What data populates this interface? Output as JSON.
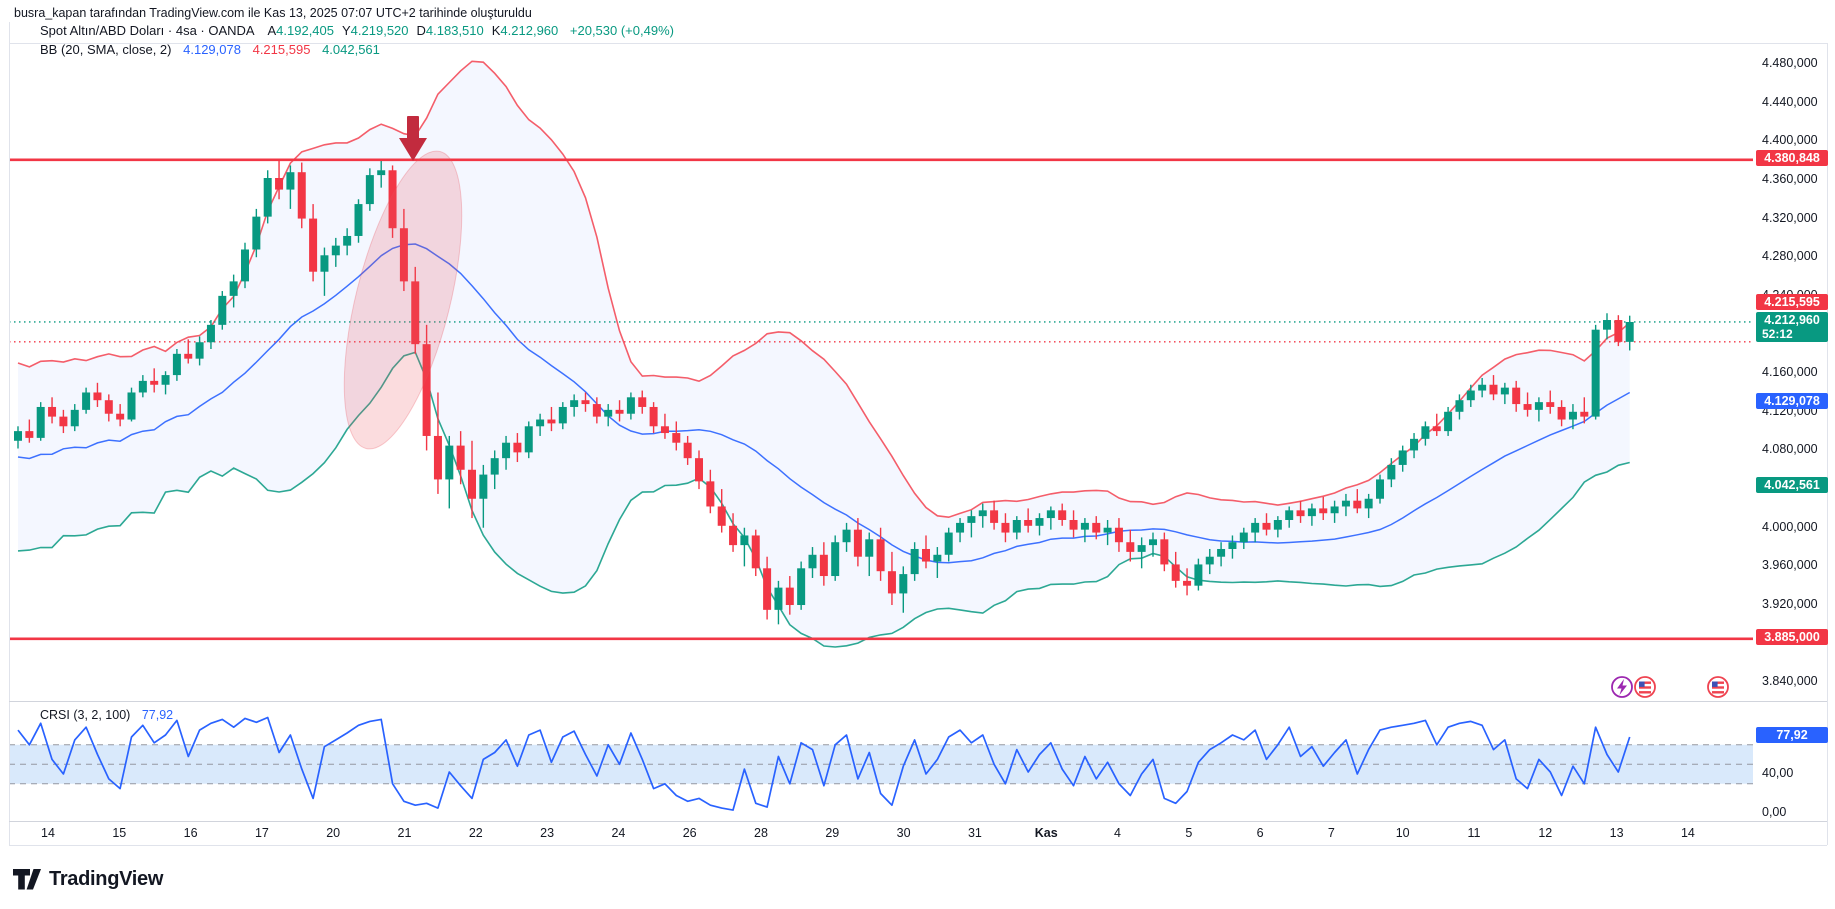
{
  "header": {
    "attribution": "busra_kapan tarafından TradingView.com ile Kas 13, 2025 07:07 UTC+2 tarihinde oluşturuldu"
  },
  "legend": {
    "symbol": "Spot Altın/ABD Doları · 4sa · OANDA",
    "ohlc": [
      {
        "label": "A",
        "value": "4.192,405"
      },
      {
        "label": "Y",
        "value": "4.219,520"
      },
      {
        "label": "D",
        "value": "4.183,510"
      },
      {
        "label": "K",
        "value": "4.212,960"
      }
    ],
    "change": "+20,530 (+0,49%)",
    "bb": {
      "name": "BB (20, SMA, close, 2)",
      "basis": "4.129,078",
      "upper": "4.215,595",
      "lower": "4.042,561"
    }
  },
  "crsi_legend": {
    "name": "CRSI (3, 2, 100)",
    "value": "77,92"
  },
  "footer": {
    "brand": "TradingView"
  },
  "colors": {
    "green": "#089981",
    "red": "#F23645",
    "blue": "#2962FF",
    "dark": "#131722",
    "border": "#E0E3EB",
    "separator": "#D1D4DC",
    "dashed": "#9598A1",
    "bb_fill": "rgba(41,98,255,0.05)",
    "crsi_band": "#D9E9FB",
    "annotation_red": "#C22B3E",
    "ellipse_fill": "rgba(234,78,90,0.22)"
  },
  "price_axis": {
    "ticks": [
      {
        "label": "4.480,000",
        "price": 4480
      },
      {
        "label": "4.440,000",
        "price": 4440
      },
      {
        "label": "4.400,000",
        "price": 4400
      },
      {
        "label": "4.360,000",
        "price": 4360
      },
      {
        "label": "4.320,000",
        "price": 4320
      },
      {
        "label": "4.280,000",
        "price": 4280
      },
      {
        "label": "4.240,000",
        "price": 4240
      },
      {
        "label": "4.160,000",
        "price": 4160
      },
      {
        "label": "4.120,000",
        "price": 4120
      },
      {
        "label": "4.080,000",
        "price": 4080
      },
      {
        "label": "4.000,000",
        "price": 4000
      },
      {
        "label": "3.960,000",
        "price": 3960
      },
      {
        "label": "3.920,000",
        "price": 3920
      },
      {
        "label": "3.840,000",
        "price": 3840
      }
    ],
    "badges": [
      {
        "label": "4.380,848",
        "price": 4380.848,
        "color": "red",
        "nudge": 0
      },
      {
        "label": "4.215,595",
        "price": 4215.595,
        "color": "red",
        "nudge": -15
      },
      {
        "label": "4.212,960",
        "price": 4212.96,
        "color": "green",
        "sub": "52:12",
        "nudge": 0
      },
      {
        "label": "4.129,078",
        "price": 4129.078,
        "color": "blue",
        "nudge": 0
      },
      {
        "label": "4.042,561",
        "price": 4042.561,
        "color": "green",
        "nudge": 0
      },
      {
        "label": "3.885,000",
        "price": 3885,
        "color": "red",
        "nudge": 0
      }
    ]
  },
  "crsi_axis": {
    "badge": {
      "label": "77,92",
      "value": 77.92,
      "color": "blue"
    },
    "ticks": [
      {
        "label": "40,00",
        "value": 40
      },
      {
        "label": "0,00",
        "value": 0
      }
    ]
  },
  "time_axis": {
    "labels": [
      "14",
      "15",
      "16",
      "17",
      "20",
      "21",
      "22",
      "23",
      "24",
      "26",
      "28",
      "29",
      "30",
      "31",
      "Kas",
      "4",
      "5",
      "6",
      "7",
      "10",
      "11",
      "12",
      "13",
      "14"
    ],
    "bold_index": 14
  },
  "chart_data": {
    "type": "candlestick",
    "symbol": "Spot Altın/ABD Doları",
    "timeframe": "4sa",
    "exchange": "OANDA",
    "last": {
      "open": 4192.405,
      "high": 4219.52,
      "low": 4183.51,
      "close": 4212.96,
      "change": "+20,530 (+0,49%)"
    },
    "levels": [
      {
        "price": 4380.848,
        "style": "solid",
        "color": "#F23645"
      },
      {
        "price": 3885.0,
        "style": "solid",
        "color": "#F23645"
      },
      {
        "price": 4212.96,
        "style": "dotted",
        "color": "#089981"
      },
      {
        "price": 4192.405,
        "style": "dotted",
        "color": "#F23645"
      }
    ],
    "bollinger": {
      "period": 20,
      "mult": 2,
      "basis": 4129.078,
      "upper": 4215.595,
      "lower": 4042.561,
      "seed": [
        4010,
        4125,
        4040,
        4110,
        3995,
        4090,
        4150,
        4030,
        4060,
        4135,
        4005,
        4080,
        4120,
        3990,
        4070,
        4140,
        4020,
        4055,
        4105,
        4045
      ]
    },
    "candles": [
      [
        4090,
        4105,
        4082,
        4100
      ],
      [
        4100,
        4112,
        4088,
        4093
      ],
      [
        4093,
        4130,
        4090,
        4125
      ],
      [
        4125,
        4135,
        4108,
        4115
      ],
      [
        4115,
        4122,
        4098,
        4105
      ],
      [
        4105,
        4128,
        4100,
        4122
      ],
      [
        4122,
        4145,
        4118,
        4140
      ],
      [
        4140,
        4150,
        4125,
        4132
      ],
      [
        4132,
        4138,
        4110,
        4118
      ],
      [
        4118,
        4128,
        4105,
        4112
      ],
      [
        4112,
        4145,
        4110,
        4140
      ],
      [
        4140,
        4158,
        4135,
        4152
      ],
      [
        4152,
        4165,
        4140,
        4148
      ],
      [
        4148,
        4162,
        4138,
        4158
      ],
      [
        4158,
        4185,
        4152,
        4180
      ],
      [
        4180,
        4195,
        4170,
        4175
      ],
      [
        4175,
        4198,
        4168,
        4192
      ],
      [
        4192,
        4215,
        4185,
        4210
      ],
      [
        4210,
        4245,
        4205,
        4240
      ],
      [
        4240,
        4262,
        4228,
        4255
      ],
      [
        4255,
        4295,
        4248,
        4288
      ],
      [
        4288,
        4330,
        4280,
        4322
      ],
      [
        4322,
        4370,
        4315,
        4362
      ],
      [
        4362,
        4380,
        4340,
        4350
      ],
      [
        4350,
        4375,
        4330,
        4368
      ],
      [
        4368,
        4378,
        4310,
        4320
      ],
      [
        4320,
        4335,
        4255,
        4265
      ],
      [
        4265,
        4290,
        4240,
        4282
      ],
      [
        4282,
        4300,
        4270,
        4292
      ],
      [
        4292,
        4310,
        4282,
        4302
      ],
      [
        4302,
        4340,
        4295,
        4335
      ],
      [
        4335,
        4372,
        4328,
        4365
      ],
      [
        4365,
        4380,
        4352,
        4370
      ],
      [
        4370,
        4375,
        4300,
        4310
      ],
      [
        4310,
        4330,
        4245,
        4255
      ],
      [
        4255,
        4270,
        4180,
        4190
      ],
      [
        4190,
        4210,
        4080,
        4095
      ],
      [
        4095,
        4140,
        4035,
        4050
      ],
      [
        4050,
        4095,
        4020,
        4085
      ],
      [
        4085,
        4100,
        4045,
        4060
      ],
      [
        4060,
        4090,
        4010,
        4030
      ],
      [
        4030,
        4065,
        4000,
        4055
      ],
      [
        4055,
        4080,
        4040,
        4072
      ],
      [
        4072,
        4095,
        4060,
        4088
      ],
      [
        4088,
        4098,
        4068,
        4078
      ],
      [
        4078,
        4110,
        4072,
        4105
      ],
      [
        4105,
        4118,
        4095,
        4112
      ],
      [
        4112,
        4125,
        4100,
        4108
      ],
      [
        4108,
        4130,
        4102,
        4125
      ],
      [
        4125,
        4138,
        4115,
        4132
      ],
      [
        4132,
        4140,
        4120,
        4128
      ],
      [
        4128,
        4135,
        4108,
        4115
      ],
      [
        4115,
        4128,
        4105,
        4122
      ],
      [
        4122,
        4132,
        4110,
        4118
      ],
      [
        4118,
        4140,
        4112,
        4135
      ],
      [
        4135,
        4142,
        4118,
        4125
      ],
      [
        4125,
        4130,
        4098,
        4105
      ],
      [
        4105,
        4118,
        4092,
        4098
      ],
      [
        4098,
        4110,
        4080,
        4088
      ],
      [
        4088,
        4095,
        4065,
        4072
      ],
      [
        4072,
        4080,
        4040,
        4048
      ],
      [
        4048,
        4060,
        4015,
        4022
      ],
      [
        4022,
        4040,
        3995,
        4002
      ],
      [
        4002,
        4015,
        3975,
        3982
      ],
      [
        3982,
        4000,
        3960,
        3992
      ],
      [
        3992,
        3998,
        3950,
        3958
      ],
      [
        3958,
        3970,
        3905,
        3915
      ],
      [
        3915,
        3945,
        3900,
        3938
      ],
      [
        3938,
        3950,
        3910,
        3920
      ],
      [
        3920,
        3965,
        3915,
        3958
      ],
      [
        3958,
        3980,
        3948,
        3972
      ],
      [
        3972,
        3985,
        3940,
        3950
      ],
      [
        3950,
        3992,
        3945,
        3985
      ],
      [
        3985,
        4005,
        3975,
        3998
      ],
      [
        3998,
        4010,
        3960,
        3970
      ],
      [
        3970,
        3995,
        3950,
        3988
      ],
      [
        3988,
        4000,
        3945,
        3955
      ],
      [
        3955,
        3975,
        3920,
        3932
      ],
      [
        3932,
        3960,
        3912,
        3952
      ],
      [
        3952,
        3985,
        3945,
        3978
      ],
      [
        3978,
        3992,
        3958,
        3965
      ],
      [
        3965,
        3980,
        3948,
        3972
      ],
      [
        3972,
        4000,
        3965,
        3995
      ],
      [
        3995,
        4010,
        3985,
        4005
      ],
      [
        4005,
        4018,
        3990,
        4012
      ],
      [
        4012,
        4025,
        4000,
        4018
      ],
      [
        4018,
        4028,
        3998,
        4005
      ],
      [
        4005,
        4015,
        3985,
        3995
      ],
      [
        3995,
        4012,
        3988,
        4008
      ],
      [
        4008,
        4020,
        3995,
        4002
      ],
      [
        4002,
        4015,
        3992,
        4010
      ],
      [
        4010,
        4022,
        3998,
        4018
      ],
      [
        4018,
        4025,
        4002,
        4008
      ],
      [
        4008,
        4018,
        3990,
        3998
      ],
      [
        3998,
        4010,
        3985,
        4005
      ],
      [
        4005,
        4012,
        3988,
        3995
      ],
      [
        3995,
        4008,
        3982,
        4000
      ],
      [
        4000,
        4010,
        3975,
        3985
      ],
      [
        3985,
        3998,
        3965,
        3975
      ],
      [
        3975,
        3990,
        3958,
        3982
      ],
      [
        3982,
        3995,
        3970,
        3988
      ],
      [
        3988,
        3995,
        3955,
        3962
      ],
      [
        3962,
        3975,
        3938,
        3945
      ],
      [
        3945,
        3958,
        3930,
        3940
      ],
      [
        3940,
        3968,
        3935,
        3962
      ],
      [
        3962,
        3978,
        3952,
        3970
      ],
      [
        3970,
        3985,
        3960,
        3978
      ],
      [
        3978,
        3992,
        3968,
        3985
      ],
      [
        3985,
        4000,
        3978,
        3995
      ],
      [
        3995,
        4010,
        3985,
        4005
      ],
      [
        4005,
        4015,
        3992,
        3998
      ],
      [
        3998,
        4012,
        3990,
        4008
      ],
      [
        4008,
        4022,
        4000,
        4018
      ],
      [
        4018,
        4028,
        4005,
        4012
      ],
      [
        4012,
        4025,
        4002,
        4020
      ],
      [
        4020,
        4032,
        4008,
        4015
      ],
      [
        4015,
        4028,
        4005,
        4022
      ],
      [
        4022,
        4035,
        4012,
        4028
      ],
      [
        4028,
        4040,
        4015,
        4020
      ],
      [
        4020,
        4035,
        4010,
        4030
      ],
      [
        4030,
        4055,
        4025,
        4050
      ],
      [
        4050,
        4072,
        4042,
        4065
      ],
      [
        4065,
        4085,
        4058,
        4080
      ],
      [
        4080,
        4098,
        4072,
        4092
      ],
      [
        4092,
        4110,
        4085,
        4105
      ],
      [
        4105,
        4118,
        4095,
        4100
      ],
      [
        4100,
        4125,
        4095,
        4120
      ],
      [
        4120,
        4138,
        4112,
        4132
      ],
      [
        4132,
        4148,
        4125,
        4142
      ],
      [
        4142,
        4155,
        4135,
        4148
      ],
      [
        4148,
        4158,
        4132,
        4138
      ],
      [
        4138,
        4150,
        4128,
        4145
      ],
      [
        4145,
        4152,
        4120,
        4128
      ],
      [
        4128,
        4140,
        4115,
        4122
      ],
      [
        4122,
        4135,
        4110,
        4130
      ],
      [
        4130,
        4142,
        4118,
        4125
      ],
      [
        4125,
        4132,
        4105,
        4112
      ],
      [
        4112,
        4128,
        4102,
        4120
      ],
      [
        4120,
        4135,
        4108,
        4115
      ],
      [
        4115,
        4210,
        4112,
        4205
      ],
      [
        4205,
        4222,
        4195,
        4215
      ],
      [
        4215,
        4220,
        4188,
        4192.4
      ],
      [
        4192.4,
        4219.5,
        4183.5,
        4212.96
      ]
    ],
    "crsi": {
      "name": "CRSI (3, 2, 100)",
      "last": 77.92,
      "bands": [
        70,
        50,
        30
      ],
      "values": [
        85,
        70,
        92,
        55,
        40,
        75,
        88,
        60,
        35,
        25,
        78,
        90,
        72,
        80,
        95,
        58,
        85,
        92,
        96,
        88,
        97,
        93,
        98,
        62,
        80,
        45,
        15,
        68,
        75,
        82,
        90,
        94,
        96,
        30,
        12,
        8,
        10,
        5,
        42,
        28,
        15,
        55,
        62,
        75,
        48,
        80,
        85,
        52,
        78,
        84,
        60,
        38,
        70,
        50,
        82,
        55,
        25,
        30,
        18,
        12,
        15,
        8,
        5,
        3,
        45,
        10,
        6,
        58,
        30,
        72,
        65,
        28,
        70,
        80,
        35,
        62,
        20,
        8,
        48,
        75,
        40,
        55,
        78,
        85,
        72,
        80,
        50,
        30,
        65,
        42,
        60,
        72,
        45,
        28,
        58,
        35,
        52,
        30,
        18,
        40,
        55,
        15,
        10,
        22,
        52,
        65,
        72,
        80,
        75,
        85,
        55,
        70,
        88,
        58,
        68,
        48,
        62,
        75,
        40,
        65,
        85,
        88,
        90,
        92,
        95,
        70,
        88,
        92,
        94,
        90,
        65,
        75,
        35,
        25,
        55,
        42,
        18,
        48,
        30,
        88,
        60,
        42,
        77.92
      ]
    }
  }
}
